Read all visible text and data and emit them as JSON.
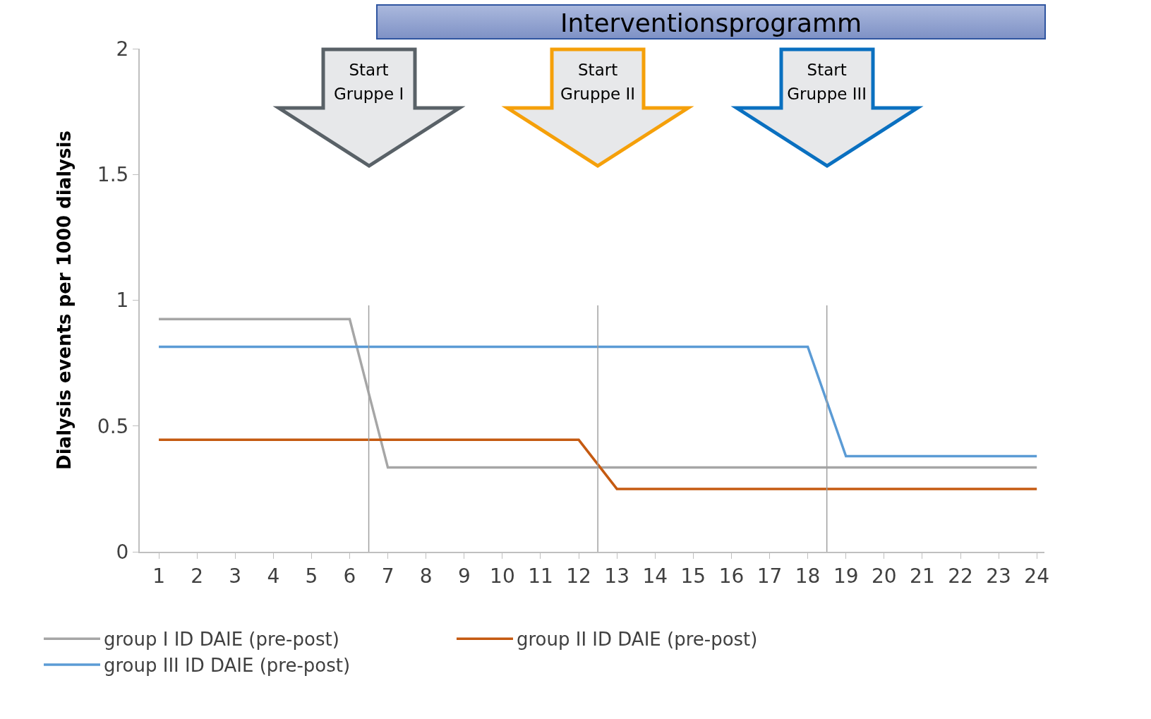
{
  "chart_data": {
    "type": "line",
    "ylabel": "Dialysis events per 1000 dialysis",
    "x": [
      1,
      2,
      3,
      4,
      5,
      6,
      7,
      8,
      9,
      10,
      11,
      12,
      13,
      14,
      15,
      16,
      17,
      18,
      19,
      20,
      21,
      22,
      23,
      24
    ],
    "xlim": [
      0.5,
      24.2
    ],
    "xticks": [
      1,
      2,
      3,
      4,
      5,
      6,
      7,
      8,
      9,
      10,
      11,
      12,
      13,
      14,
      15,
      16,
      17,
      18,
      19,
      20,
      21,
      22,
      23,
      24
    ],
    "ylim": [
      0,
      2
    ],
    "yticks": [
      0,
      0.5,
      1,
      1.5,
      2
    ],
    "series": [
      {
        "name": "group I ID DAIE (pre-post)",
        "color": "#a6a6a6",
        "values": [
          0.925,
          0.925,
          0.925,
          0.925,
          0.925,
          0.925,
          0.335,
          0.335,
          0.335,
          0.335,
          0.335,
          0.335,
          0.335,
          0.335,
          0.335,
          0.335,
          0.335,
          0.335,
          0.335,
          0.335,
          0.335,
          0.335,
          0.335,
          0.335
        ]
      },
      {
        "name": "group II ID DAIE (pre-post)",
        "color": "#c55a11",
        "values": [
          0.445,
          0.445,
          0.445,
          0.445,
          0.445,
          0.445,
          0.445,
          0.445,
          0.445,
          0.445,
          0.445,
          0.445,
          0.25,
          0.25,
          0.25,
          0.25,
          0.25,
          0.25,
          0.25,
          0.25,
          0.25,
          0.25,
          0.25,
          0.25
        ]
      },
      {
        "name": "group III ID DAIE (pre-post)",
        "color": "#5b9bd5",
        "values": [
          0.815,
          0.815,
          0.815,
          0.815,
          0.815,
          0.815,
          0.815,
          0.815,
          0.815,
          0.815,
          0.815,
          0.815,
          0.815,
          0.815,
          0.815,
          0.815,
          0.815,
          0.815,
          0.38,
          0.38,
          0.38,
          0.38,
          0.38,
          0.38
        ]
      }
    ],
    "ref_lines": [
      {
        "axis": "x",
        "value": 6.5,
        "color": "#a0a0a0"
      },
      {
        "axis": "x",
        "value": 12.5,
        "color": "#a0a0a0"
      },
      {
        "axis": "x",
        "value": 18.5,
        "color": "#a0a0a0"
      }
    ],
    "annotations": [
      "Interventionsprogramm",
      "Start Gruppe I",
      "Start Gruppe II",
      "Start Gruppe III"
    ],
    "legend": "bottom",
    "grid": false,
    "marker": "none",
    "line_style": "solid"
  }
}
